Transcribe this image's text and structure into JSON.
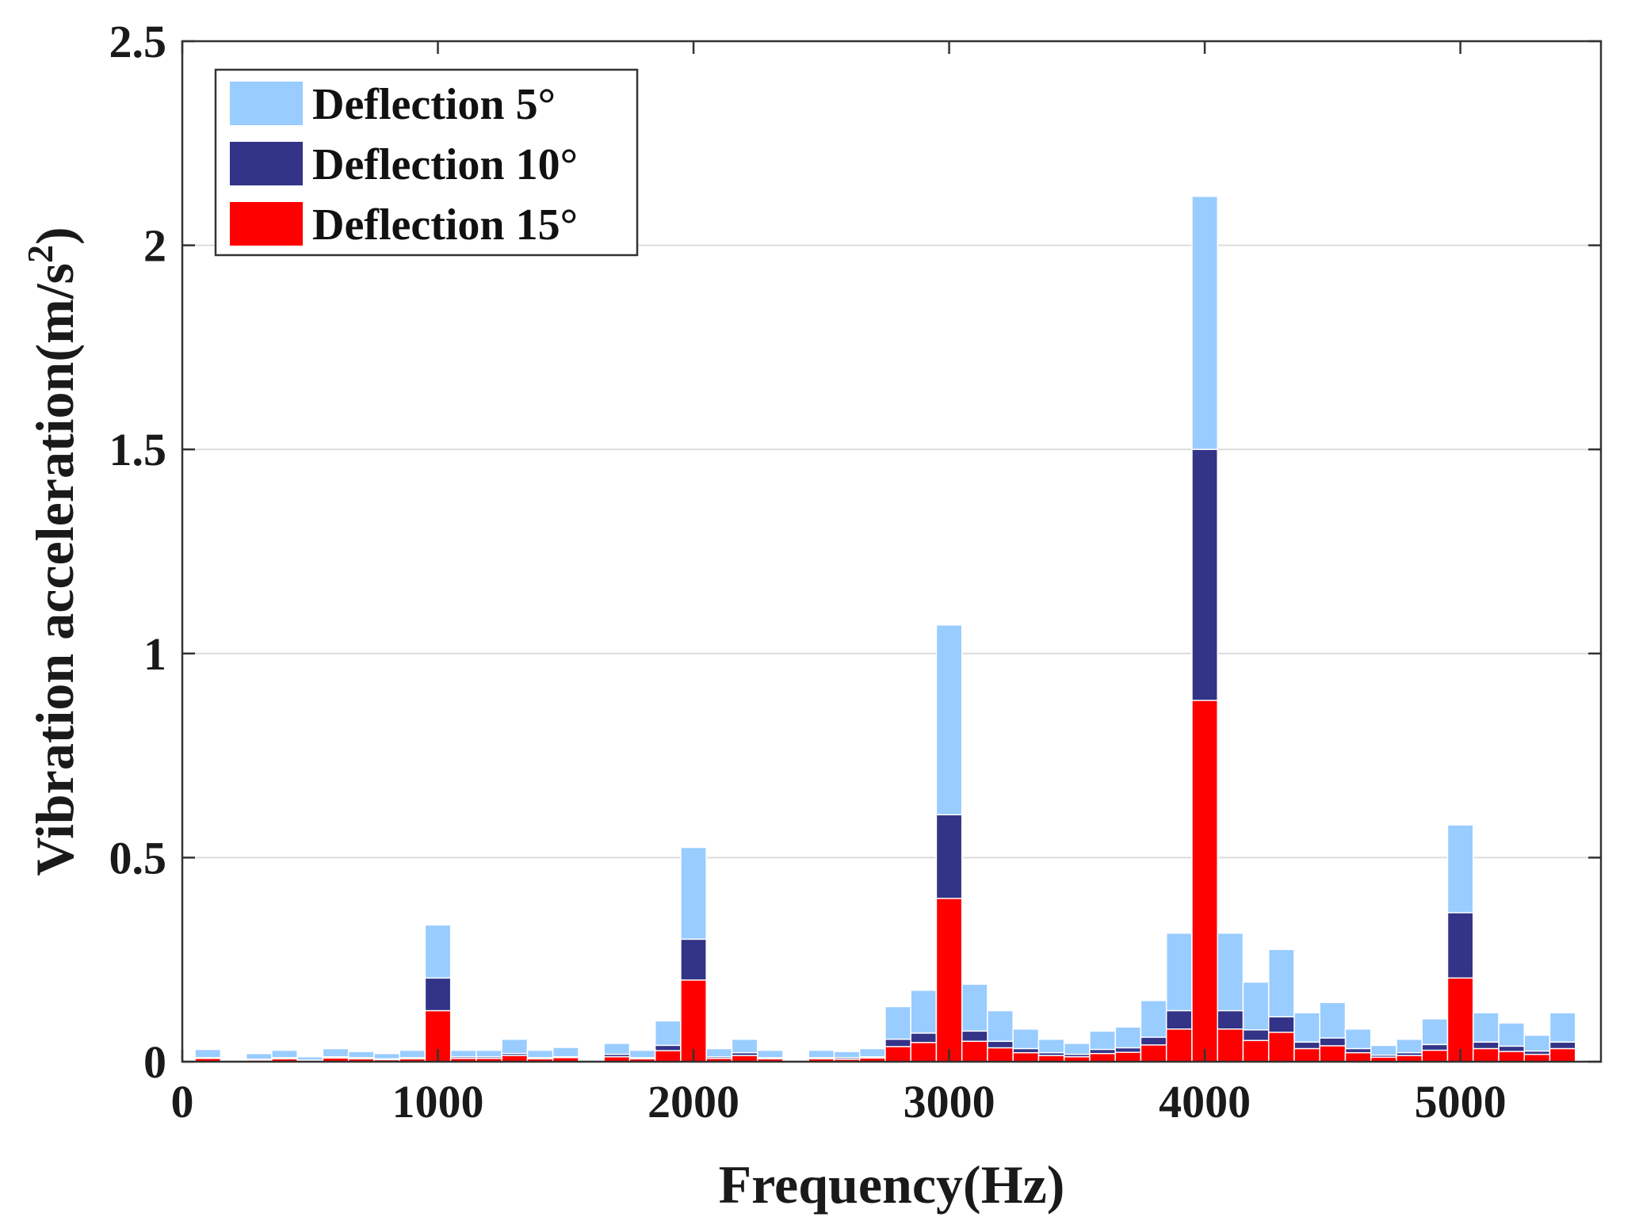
{
  "chart_data": {
    "type": "bar",
    "subtype": "overlaid histogram",
    "xlabel": "Frequency(Hz)",
    "ylabel": "Vibration acceleration(m/s",
    "ylabel_superscript": "2",
    "ylabel_close": ")",
    "xlim": [
      0,
      5550
    ],
    "ylim": [
      0,
      2.5
    ],
    "xticks": [
      0,
      1000,
      2000,
      3000,
      4000,
      5000
    ],
    "xtick_labels": [
      "0",
      "1000",
      "2000",
      "3000",
      "4000",
      "5000"
    ],
    "yticks": [
      0,
      0.5,
      1,
      1.5,
      2,
      2.5
    ],
    "ytick_labels": [
      "0",
      "0.5",
      "1",
      "1.5",
      "2",
      "2.5"
    ],
    "grid": true,
    "legend_position": "top-left",
    "bin_width": 100,
    "x": [
      100,
      200,
      300,
      400,
      500,
      600,
      700,
      800,
      900,
      1000,
      1100,
      1200,
      1300,
      1400,
      1500,
      1600,
      1700,
      1800,
      1900,
      2000,
      2100,
      2200,
      2300,
      2400,
      2500,
      2600,
      2700,
      2800,
      2900,
      3000,
      3100,
      3200,
      3300,
      3400,
      3500,
      3600,
      3700,
      3800,
      3900,
      4000,
      4100,
      4200,
      4300,
      4400,
      4500,
      4600,
      4700,
      4800,
      4900,
      5000,
      5100,
      5200,
      5300,
      5400
    ],
    "series": [
      {
        "name": "Deflection 5°",
        "color": "#99ccff",
        "values": [
          0.03,
          0.005,
          0.02,
          0.028,
          0.012,
          0.032,
          0.025,
          0.02,
          0.028,
          0.335,
          0.028,
          0.028,
          0.055,
          0.028,
          0.035,
          0.005,
          0.045,
          0.028,
          0.1,
          0.525,
          0.032,
          0.055,
          0.028,
          0.005,
          0.028,
          0.025,
          0.032,
          0.135,
          0.175,
          1.07,
          0.19,
          0.125,
          0.08,
          0.055,
          0.045,
          0.075,
          0.085,
          0.15,
          0.315,
          2.12,
          0.315,
          0.195,
          0.275,
          0.12,
          0.145,
          0.08,
          0.04,
          0.055,
          0.105,
          0.58,
          0.12,
          0.095,
          0.065,
          0.12
        ]
      },
      {
        "name": "Deflection 10°",
        "color": "#333388",
        "values": [
          0.01,
          0.002,
          0.006,
          0.01,
          0.004,
          0.012,
          0.01,
          0.007,
          0.01,
          0.205,
          0.012,
          0.012,
          0.02,
          0.01,
          0.012,
          0.002,
          0.018,
          0.01,
          0.04,
          0.3,
          0.012,
          0.022,
          0.01,
          0.002,
          0.01,
          0.01,
          0.012,
          0.055,
          0.07,
          0.605,
          0.075,
          0.05,
          0.032,
          0.022,
          0.018,
          0.03,
          0.034,
          0.06,
          0.125,
          1.5,
          0.125,
          0.078,
          0.11,
          0.048,
          0.058,
          0.032,
          0.016,
          0.022,
          0.042,
          0.365,
          0.048,
          0.038,
          0.026,
          0.048
        ]
      },
      {
        "name": "Deflection 15°",
        "color": "#ff0000",
        "values": [
          0.008,
          0.001,
          0.004,
          0.007,
          0.003,
          0.009,
          0.007,
          0.005,
          0.007,
          0.125,
          0.008,
          0.008,
          0.015,
          0.007,
          0.01,
          0.001,
          0.012,
          0.007,
          0.027,
          0.2,
          0.008,
          0.015,
          0.007,
          0.001,
          0.007,
          0.006,
          0.009,
          0.037,
          0.047,
          0.4,
          0.05,
          0.034,
          0.022,
          0.015,
          0.012,
          0.02,
          0.023,
          0.041,
          0.08,
          0.885,
          0.08,
          0.052,
          0.072,
          0.032,
          0.039,
          0.022,
          0.011,
          0.015,
          0.028,
          0.205,
          0.032,
          0.025,
          0.018,
          0.032
        ]
      }
    ]
  }
}
